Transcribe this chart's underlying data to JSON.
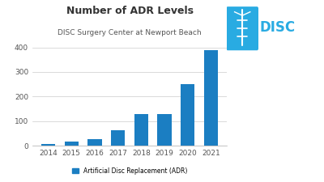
{
  "title": "Number of ADR Levels",
  "subtitle": "DISC Surgery Center at Newport Beach",
  "years": [
    2014,
    2015,
    2016,
    2017,
    2018,
    2019,
    2020,
    2021
  ],
  "values": [
    8,
    15,
    25,
    62,
    127,
    130,
    252,
    390
  ],
  "bar_color": "#1b7ec2",
  "background_color": "#ffffff",
  "yticks": [
    0,
    100,
    200,
    300,
    400
  ],
  "ylim": [
    0,
    430
  ],
  "legend_label": "Artificial Disc Replacement (ADR)",
  "title_fontsize": 9,
  "subtitle_fontsize": 6.5,
  "tick_fontsize": 6.5,
  "legend_fontsize": 5.5,
  "logo_color": "#29abe2",
  "logo_dark_color": "#1b7ec2"
}
